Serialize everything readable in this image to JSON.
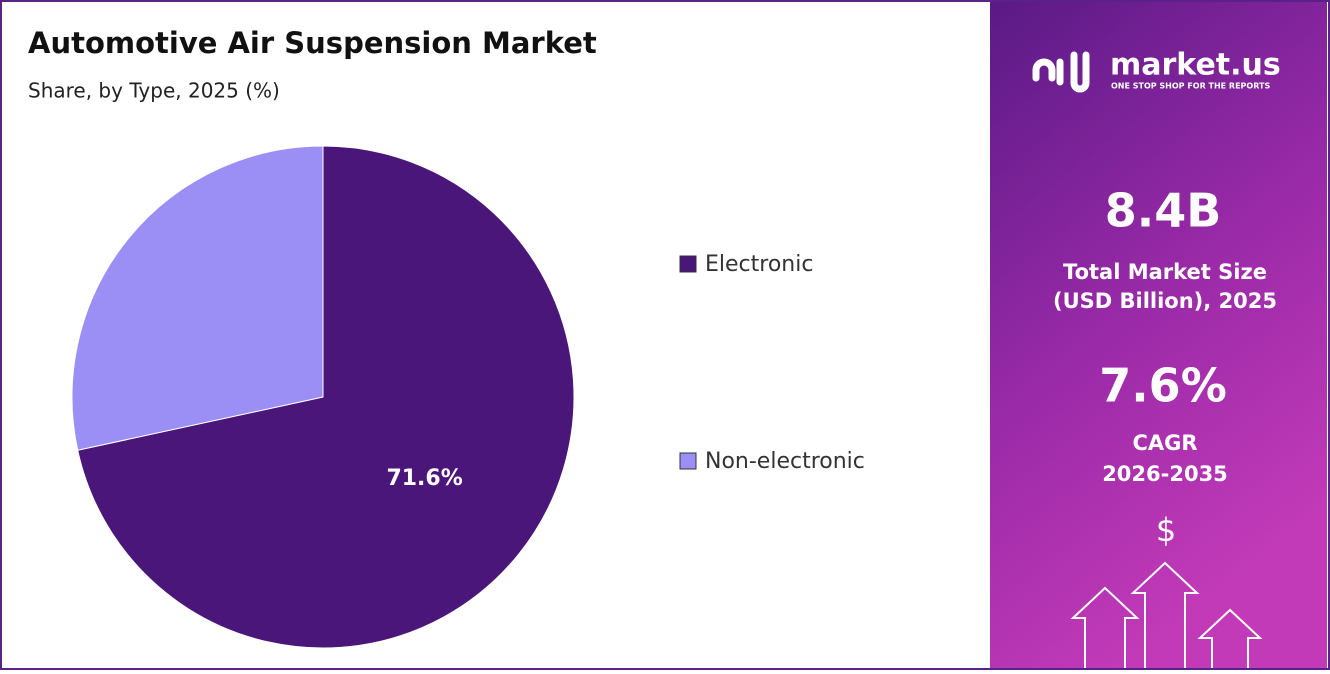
{
  "chart_data": {
    "type": "pie",
    "title": "Automotive Air Suspension Market",
    "subtitle": "Share, by Type, 2025 (%)",
    "categories": [
      "Electronic",
      "Non-electronic"
    ],
    "values": [
      71.6,
      28.4
    ],
    "value_labels": [
      "71.6%",
      null
    ],
    "colors": [
      "#4b167a",
      "#9b8ff5"
    ],
    "start_angle": 0,
    "direction": "clockwise",
    "legend": "right"
  },
  "side_panel": {
    "brand": "market.us",
    "tagline": "ONE STOP SHOP FOR THE REPORTS",
    "market_size": "8.4B",
    "market_size_label": [
      "Total Market Size",
      "(USD Billion), 2025"
    ],
    "cagr": "7.6%",
    "cagr_label": [
      "CAGR",
      "2026-2035"
    ],
    "currency_icon": "$"
  }
}
